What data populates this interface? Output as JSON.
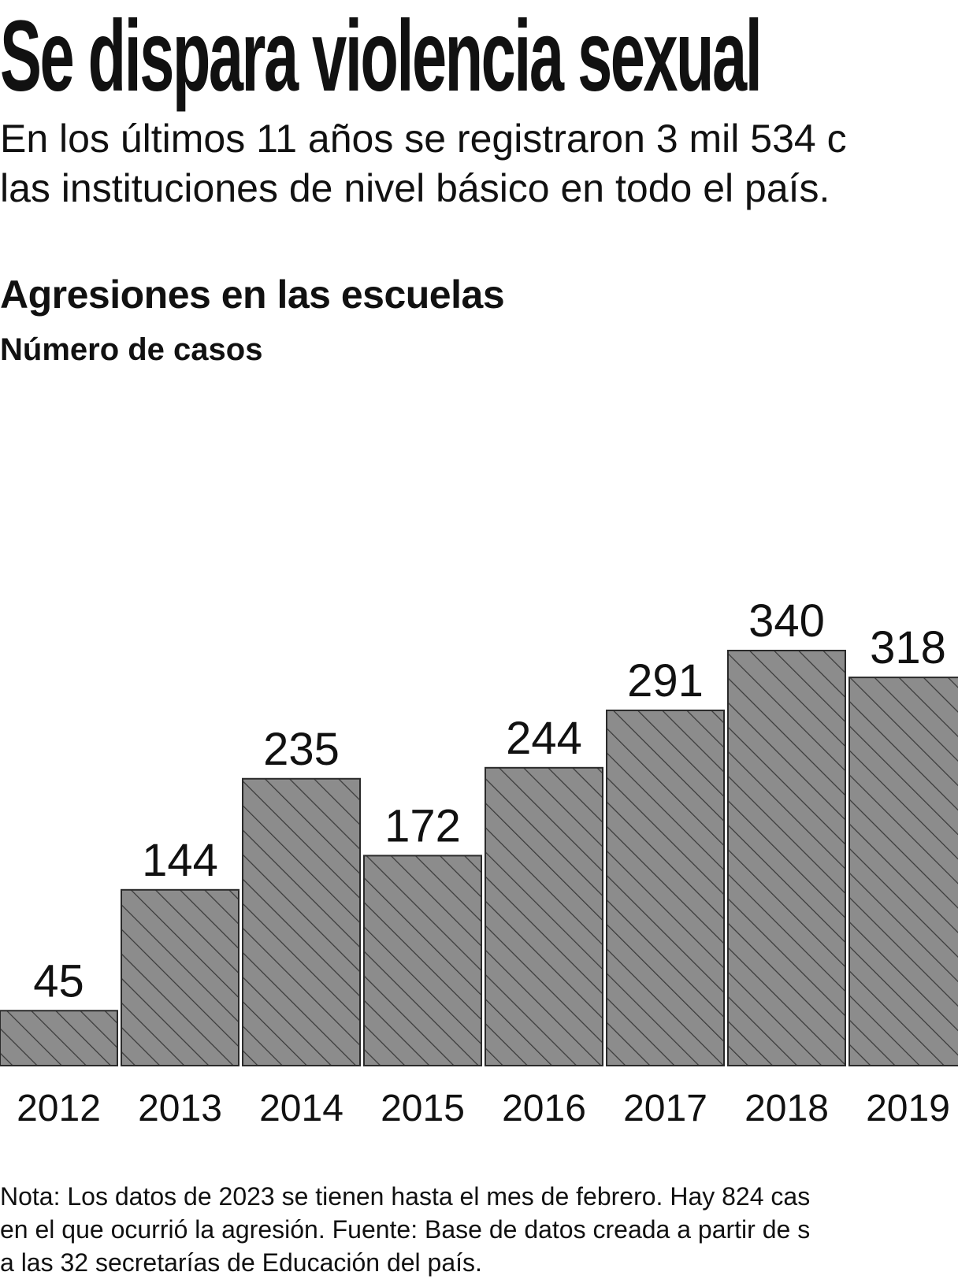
{
  "header": {
    "title": "Se dispara violencia sexual",
    "subtitle_lines": [
      "En los últimos 11 años se registraron 3 mil 534 c",
      "las instituciones de nivel básico en todo el país."
    ]
  },
  "chart_data": {
    "type": "bar",
    "title": "Agresiones en las escuelas",
    "subtitle": "Número de casos",
    "categories": [
      "2012",
      "2013",
      "2014",
      "2015",
      "2016",
      "2017",
      "2018",
      "2019"
    ],
    "values": [
      45,
      144,
      235,
      172,
      244,
      291,
      340,
      318
    ],
    "ylim": [
      0,
      400
    ],
    "grid": false,
    "data_labels": true,
    "bar_fill": "#8c8c8c",
    "hatch_color": "#3a3a3a",
    "bar_outline": "#2a2a2a"
  },
  "footer": {
    "note_lines": [
      "Nota: Los datos de 2023 se tienen hasta el mes de febrero. Hay 824 cas",
      "en el que ocurrió la agresión. Fuente: Base de datos creada a partir de s",
      "a las 32 secretarías de Educación del país."
    ]
  }
}
